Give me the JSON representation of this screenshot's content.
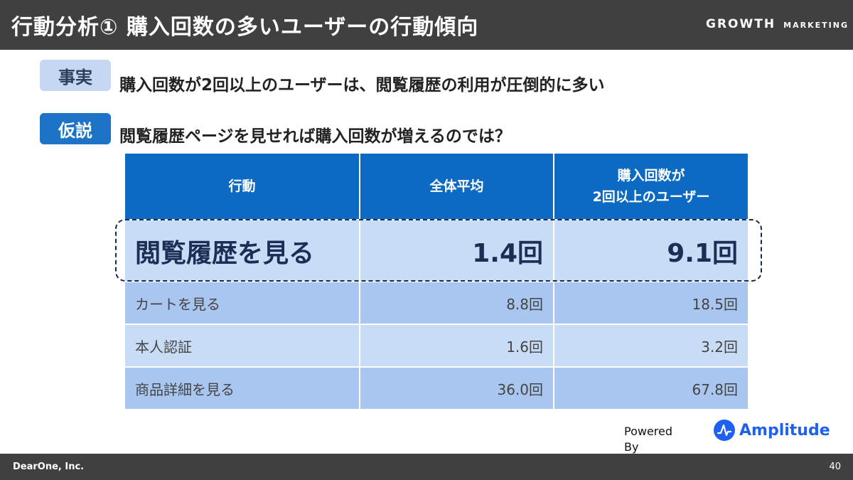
{
  "header": {
    "title": "行動分析① 購入回数の多いユーザーの行動傾向",
    "logo_main": "GROWTH",
    "logo_sub": "MARKETING"
  },
  "fact": {
    "tag": "事実",
    "text": "購入回数が2回以上のユーザーは、閲覧履歴の利用が圧倒的に多い"
  },
  "hypothesis": {
    "tag": "仮説",
    "text": "閲覧履歴ページを見せれば購入回数が増えるのでは？"
  },
  "table": {
    "headers": [
      "行動",
      "全体平均",
      "購入回数が",
      "2回以上のユーザー"
    ],
    "rows": [
      {
        "action": "閲覧履歴を見る",
        "average": "1.4回",
        "repeat": "9.1回"
      },
      {
        "action": "カートを見る",
        "average": "8.8回",
        "repeat": "18.5回"
      },
      {
        "action": "本人認証",
        "average": "1.6回",
        "repeat": "3.2回"
      },
      {
        "action": "商品詳細を見る",
        "average": "36.0回",
        "repeat": "67.8回"
      }
    ]
  },
  "powered": {
    "line1": "Powered",
    "line2": "By"
  },
  "amplitude": {
    "name": "Amplitude",
    "icon": "amplitude-logo-icon",
    "color": "#1e61f0"
  },
  "footer": {
    "company": "DearOne, Inc.",
    "page": "40"
  }
}
